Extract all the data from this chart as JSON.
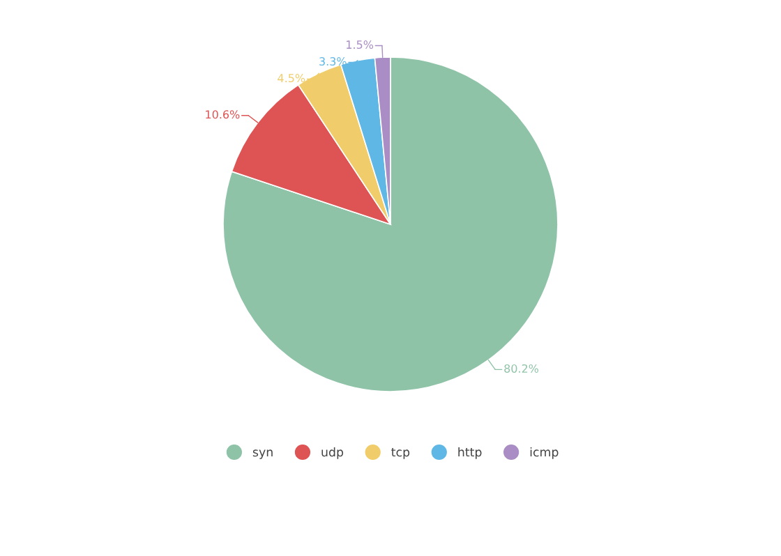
{
  "chart_data": {
    "type": "pie",
    "categories": [
      "syn",
      "udp",
      "tcp",
      "http",
      "icmp"
    ],
    "values": [
      80.2,
      10.6,
      4.5,
      3.3,
      1.5
    ],
    "colors": [
      "#8fc3a7",
      "#de5353",
      "#f0cd6a",
      "#5fb7e5",
      "#a98dc4"
    ],
    "value_labels": [
      "80.2%",
      "10.6%",
      "4.5%",
      "3.3%",
      "1.5%"
    ],
    "legend": "bottom"
  }
}
